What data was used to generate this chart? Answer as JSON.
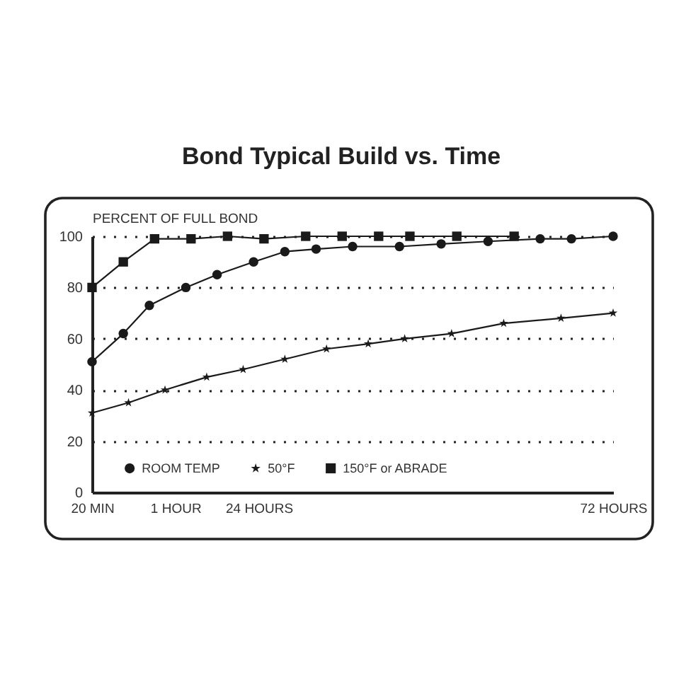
{
  "chart_data": {
    "type": "line",
    "title": "Bond Typical Build vs. Time",
    "ylabel": "PERCENT OF FULL BOND",
    "categories": [
      "20 MIN",
      null,
      null,
      null,
      null,
      null,
      null,
      null,
      null,
      null,
      null,
      null,
      null,
      null,
      null,
      null,
      "1 HOUR",
      null,
      null,
      null,
      null,
      null,
      null,
      null,
      null,
      null,
      null,
      null,
      null,
      null,
      null,
      null,
      "24 HOURS",
      null,
      null,
      null,
      null,
      null,
      null,
      null,
      null,
      null,
      null,
      null,
      null,
      null,
      null,
      null,
      null,
      null,
      null,
      null,
      null,
      null,
      null,
      null,
      null,
      null,
      null,
      null,
      null,
      null,
      null,
      null,
      null,
      null,
      null,
      null,
      null,
      null,
      null,
      null,
      null,
      null,
      null,
      null,
      null,
      null,
      null,
      null,
      null,
      null,
      null,
      null,
      null,
      null,
      null,
      null,
      null,
      null,
      null,
      null,
      null,
      null,
      null,
      null,
      null,
      null,
      null,
      null,
      "72 HOURS"
    ],
    "ylim": [
      0,
      100
    ],
    "yticks": [
      0,
      20,
      40,
      60,
      80,
      100
    ],
    "grid": "y",
    "legend": "bottom",
    "line_style": "solid",
    "series": [
      {
        "name": "ROOM TEMP",
        "color": "#1a1a1a",
        "marker": "circle",
        "values": [
          51,
          null,
          null,
          null,
          null,
          null,
          62,
          null,
          null,
          null,
          null,
          73,
          null,
          null,
          null,
          null,
          null,
          null,
          80,
          null,
          null,
          null,
          null,
          null,
          85,
          null,
          null,
          null,
          null,
          null,
          null,
          90,
          null,
          null,
          null,
          null,
          null,
          94,
          null,
          null,
          null,
          null,
          null,
          95,
          null,
          null,
          null,
          null,
          null,
          null,
          96,
          null,
          null,
          null,
          null,
          null,
          null,
          null,
          null,
          96,
          null,
          null,
          null,
          null,
          null,
          null,
          null,
          97,
          null,
          null,
          null,
          null,
          null,
          null,
          null,
          null,
          98,
          null,
          null,
          null,
          null,
          null,
          null,
          null,
          null,
          null,
          99,
          null,
          null,
          null,
          null,
          null,
          99,
          null,
          null,
          null,
          null,
          null,
          null,
          null,
          100
        ]
      },
      {
        "name": "50°F",
        "color": "#1a1a1a",
        "marker": "star",
        "values": [
          31,
          null,
          null,
          null,
          null,
          null,
          null,
          35,
          null,
          null,
          null,
          null,
          null,
          null,
          40,
          null,
          null,
          null,
          null,
          null,
          null,
          null,
          45,
          null,
          null,
          null,
          null,
          null,
          null,
          48,
          null,
          null,
          null,
          null,
          null,
          null,
          null,
          52,
          null,
          null,
          null,
          null,
          null,
          null,
          null,
          56,
          null,
          null,
          null,
          null,
          null,
          null,
          null,
          58,
          null,
          null,
          null,
          null,
          null,
          null,
          60,
          null,
          null,
          null,
          null,
          null,
          null,
          null,
          null,
          62,
          null,
          null,
          null,
          null,
          null,
          null,
          null,
          null,
          null,
          66,
          null,
          null,
          null,
          null,
          null,
          null,
          null,
          null,
          null,
          null,
          68,
          null,
          null,
          null,
          null,
          null,
          null,
          null,
          null,
          null,
          70
        ]
      },
      {
        "name": "150°F or ABRADE",
        "color": "#1a1a1a",
        "marker": "square",
        "values": [
          80,
          null,
          null,
          null,
          null,
          null,
          90,
          null,
          null,
          null,
          null,
          null,
          99,
          null,
          null,
          null,
          null,
          null,
          null,
          99,
          null,
          null,
          null,
          null,
          null,
          null,
          100,
          null,
          null,
          null,
          null,
          null,
          null,
          99,
          null,
          null,
          null,
          null,
          null,
          null,
          null,
          100,
          null,
          null,
          null,
          null,
          null,
          null,
          100,
          null,
          null,
          null,
          null,
          null,
          null,
          100,
          null,
          null,
          null,
          null,
          null,
          100,
          null,
          null,
          null,
          null,
          null,
          null,
          null,
          null,
          100,
          null,
          null,
          null,
          null,
          null,
          null,
          null,
          null,
          null,
          null,
          100,
          null,
          null,
          null,
          null,
          null,
          null,
          null,
          null,
          null,
          null,
          null,
          null,
          null,
          null,
          null,
          null,
          null,
          null,
          null
        ]
      }
    ]
  }
}
